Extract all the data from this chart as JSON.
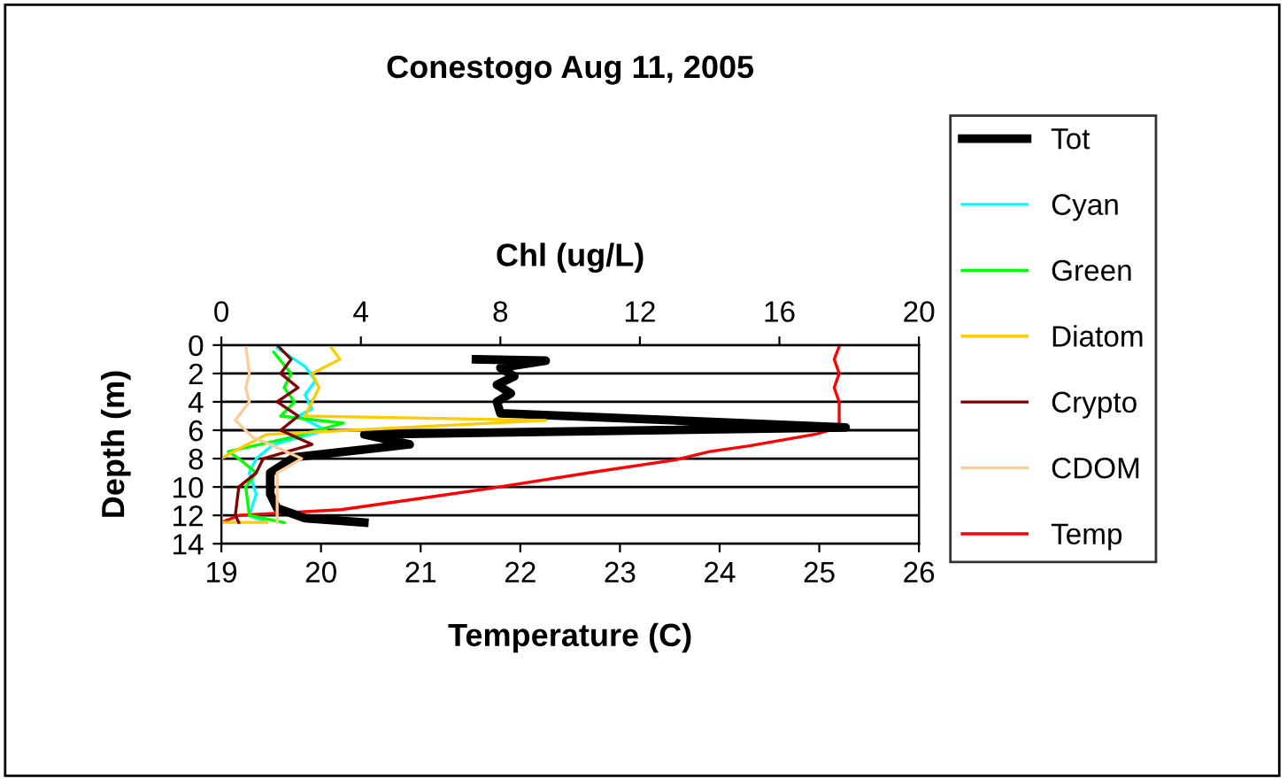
{
  "chart_data": {
    "type": "line",
    "title": "Conestogo Aug 11, 2005",
    "xlabel": "Temperature (C)",
    "x2label": "Chl (ug/L)",
    "ylabel": "Depth (m)",
    "xlim": [
      19,
      26
    ],
    "xticks": [
      19,
      20,
      21,
      22,
      23,
      24,
      25,
      26
    ],
    "x2lim": [
      0,
      20
    ],
    "x2ticks": [
      0,
      4,
      8,
      12,
      16,
      20
    ],
    "ylim": [
      14,
      0
    ],
    "yticks": [
      0,
      2,
      4,
      6,
      8,
      10,
      12,
      14
    ],
    "grid": "y",
    "legend": "right",
    "marker": "none",
    "line_style": "solid",
    "series": [
      {
        "name": "Tot",
        "color": "#000000",
        "axis": "x2",
        "x": [
          7.3,
          9.3,
          8.0,
          8.4,
          7.9,
          8.3,
          7.9,
          8.0,
          17.9,
          4.1,
          5.4,
          2.1,
          1.4,
          1.4,
          1.6,
          2.4,
          4.1
        ],
        "values": [
          1.0,
          1.1,
          1.6,
          2.2,
          2.8,
          3.4,
          4.0,
          4.8,
          5.8,
          6.3,
          7.0,
          7.9,
          9.0,
          10.5,
          11.5,
          12.2,
          12.5
        ]
      },
      {
        "name": "Cyan",
        "color": "#00ffff",
        "axis": "x2",
        "x": [
          1.6,
          2.4,
          2.7,
          2.4,
          2.6,
          2.2,
          3.0,
          1.5,
          1.0,
          0.8,
          1.0,
          0.8,
          1.3
        ],
        "values": [
          0.2,
          1.5,
          2.5,
          3.5,
          4.5,
          5.0,
          6.0,
          7.0,
          8.0,
          9.0,
          10.5,
          12.0,
          12.5
        ]
      },
      {
        "name": "Green",
        "color": "#00ff00",
        "axis": "x2",
        "x": [
          1.5,
          2.0,
          1.8,
          2.1,
          1.7,
          3.5,
          2.0,
          0.2,
          0.5,
          1.0,
          0.7,
          0.8,
          1.8
        ],
        "values": [
          0.5,
          2.0,
          3.0,
          4.0,
          5.0,
          5.5,
          6.5,
          7.5,
          8.0,
          9.0,
          10.0,
          12.0,
          12.5
        ]
      },
      {
        "name": "Diatom",
        "color": "#ffcc00",
        "axis": "x2",
        "x": [
          3.1,
          3.4,
          2.6,
          2.8,
          2.6,
          2.4,
          9.3,
          1.3,
          0.2,
          0.0,
          0.0,
          1.3
        ],
        "values": [
          0.0,
          1.0,
          2.0,
          3.0,
          4.0,
          5.0,
          5.3,
          6.3,
          7.7,
          8.0,
          12.5,
          12.5
        ]
      },
      {
        "name": "Crypto",
        "color": "#800000",
        "axis": "x2",
        "x": [
          1.6,
          2.0,
          1.7,
          2.2,
          1.6,
          2.2,
          1.7,
          2.6,
          1.2,
          1.0,
          0.5,
          0.4,
          0.5
        ],
        "values": [
          0.0,
          1.0,
          2.0,
          3.0,
          4.0,
          5.0,
          6.0,
          7.0,
          8.0,
          9.0,
          10.0,
          12.0,
          12.5
        ]
      },
      {
        "name": "CDOM",
        "color": "#ffcc99",
        "axis": "x2",
        "x": [
          0.7,
          0.8,
          0.7,
          0.8,
          0.4,
          0.9,
          1.4,
          2.3,
          1.6,
          1.6,
          1.6
        ],
        "values": [
          0.0,
          2.0,
          3.0,
          4.0,
          5.3,
          6.5,
          7.0,
          8.0,
          9.0,
          11.0,
          12.5
        ]
      },
      {
        "name": "Temp",
        "color": "#ff0000",
        "x": [
          25.2,
          25.15,
          25.2,
          25.15,
          25.2,
          25.2,
          24.98,
          24.3,
          23.9,
          23.55,
          22.78,
          21.7,
          20.2,
          19.18,
          19.0
        ],
        "values": [
          0.1,
          1.0,
          2.0,
          3.0,
          4.0,
          5.8,
          6.25,
          7.1,
          7.5,
          8.1,
          8.9,
          10.1,
          11.6,
          12.0,
          12.5
        ]
      }
    ]
  }
}
